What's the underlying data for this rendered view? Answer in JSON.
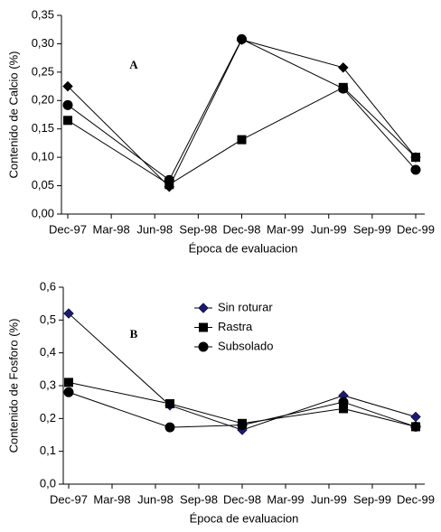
{
  "chart_data": [
    {
      "type": "line",
      "annotation": "A",
      "y_label": "Contenido de Calcio (%)",
      "x_label": "Época de evaluacion",
      "xlim": [
        "Dec-97",
        "Dec-99"
      ],
      "xticks": [
        "Dec-97",
        "Mar-98",
        "Jun-98",
        "Sep-98",
        "Dec-98",
        "Mar-99",
        "Jun-99",
        "Sep-99",
        "Dec-99"
      ],
      "x": [
        "Dec-97",
        "Jul-98",
        "Dec-98",
        "Jul-99",
        "Dec-99"
      ],
      "ylim": [
        0,
        0.35
      ],
      "yticks": [
        {
          "value": 0,
          "label": "0,00"
        },
        {
          "value": 0.05,
          "label": "0,05"
        },
        {
          "value": 0.1,
          "label": "0,10"
        },
        {
          "value": 0.15,
          "label": "0,15"
        },
        {
          "value": 0.2,
          "label": "0,20"
        },
        {
          "value": 0.25,
          "label": "0,25"
        },
        {
          "value": 0.3,
          "label": "0,30"
        },
        {
          "value": 0.35,
          "label": "0,35"
        }
      ],
      "series": [
        {
          "marker": "diamond",
          "color": "#000000",
          "values": [
            0.225,
            0.048,
            0.307,
            0.258,
            0.1
          ]
        },
        {
          "marker": "square",
          "color": "#000000",
          "values": [
            0.165,
            0.052,
            0.131,
            0.223,
            0.1
          ]
        },
        {
          "marker": "circle",
          "color": "#000000",
          "values": [
            0.192,
            0.06,
            0.308,
            0.221,
            0.078
          ]
        }
      ]
    },
    {
      "type": "line",
      "annotation": "B",
      "y_label": "Contenido de Fosforo (%)",
      "x_label": "Época de evaluacion",
      "xlim": [
        "Dec-97",
        "Dec-99"
      ],
      "xticks": [
        "Dec-97",
        "Mar-98",
        "Jun-98",
        "Sep-98",
        "Dec-98",
        "Mar-99",
        "Jun-99",
        "Sep-99",
        "Dec-99"
      ],
      "x": [
        "Dec-97",
        "Jul-98",
        "Dec-98",
        "Jul-99",
        "Dec-99"
      ],
      "ylim": [
        0,
        0.6
      ],
      "yticks": [
        {
          "value": 0,
          "label": "0,0"
        },
        {
          "value": 0.1,
          "label": "0,1"
        },
        {
          "value": 0.2,
          "label": "0,2"
        },
        {
          "value": 0.3,
          "label": "0,3"
        },
        {
          "value": 0.4,
          "label": "0,4"
        },
        {
          "value": 0.5,
          "label": "0,5"
        },
        {
          "value": 0.6,
          "label": "0,6"
        }
      ],
      "legend": "top-center",
      "series": [
        {
          "name": "Sin roturar",
          "marker": "diamond",
          "color": "#1a1a6e",
          "values": [
            0.52,
            0.24,
            0.165,
            0.27,
            0.205
          ]
        },
        {
          "name": "Rastra",
          "marker": "square",
          "color": "#000000",
          "values": [
            0.31,
            0.245,
            0.185,
            0.23,
            0.175
          ]
        },
        {
          "name": "Subsolado",
          "marker": "circle",
          "color": "#000000",
          "values": [
            0.28,
            0.173,
            0.18,
            0.25,
            0.175
          ]
        }
      ]
    }
  ]
}
